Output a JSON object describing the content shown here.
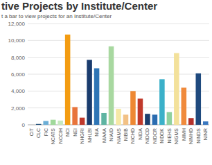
{
  "chart_data": {
    "type": "bar",
    "title": "tive Projects by Institute/Center",
    "subtitle": "t a bar to view projects for an Institute/Center",
    "categories": [
      "CIT",
      "CLC",
      "FIC",
      "NCATS",
      "NCCIH",
      "NCI",
      "NEI",
      "NHGRI",
      "NHLBI",
      "NIA",
      "NIAAA",
      "NIAID",
      "NIAMS",
      "NIBIB",
      "NICHD",
      "NIDA",
      "NIDCD",
      "NIDCR",
      "NIDDK",
      "NIEHS",
      "NIGMS",
      "NIMH",
      "NIMHD",
      "NINDS",
      "NINR"
    ],
    "values": [
      20,
      100,
      450,
      600,
      500,
      10700,
      2100,
      850,
      7700,
      6700,
      1400,
      9300,
      1900,
      1200,
      4000,
      3100,
      1300,
      1200,
      5400,
      1500,
      8500,
      4400,
      800,
      6100,
      400
    ],
    "colors": [
      "#c8c8c8",
      "#1f4e79",
      "#6baed6",
      "#a1d99b",
      "#c7e9c0",
      "#f39c12",
      "#e8743b",
      "#c0392b",
      "#1a3c6e",
      "#2e75b6",
      "#5fb4a2",
      "#a8d8a0",
      "#f6e8a6",
      "#f2c185",
      "#ee8833",
      "#c0392b",
      "#1c3f6e",
      "#2b6cb0",
      "#3bb0c9",
      "#8fd19e",
      "#f3e19b",
      "#f08a3c",
      "#b5312a",
      "#1f4a7e",
      "#3a78c0"
    ],
    "ylim": [
      0,
      12000
    ],
    "yticks": [
      0,
      {
        "value": 2000,
        "label": "2,000"
      },
      {
        "value": 4000,
        "label": "4,000"
      },
      {
        "value": 6000,
        "label": "6,000"
      },
      {
        "value": 8000,
        "label": "8,000"
      },
      {
        "value": 10000,
        "label": "10,000"
      },
      {
        "value": 12000,
        "label": "12,000"
      }
    ],
    "grid": true
  }
}
